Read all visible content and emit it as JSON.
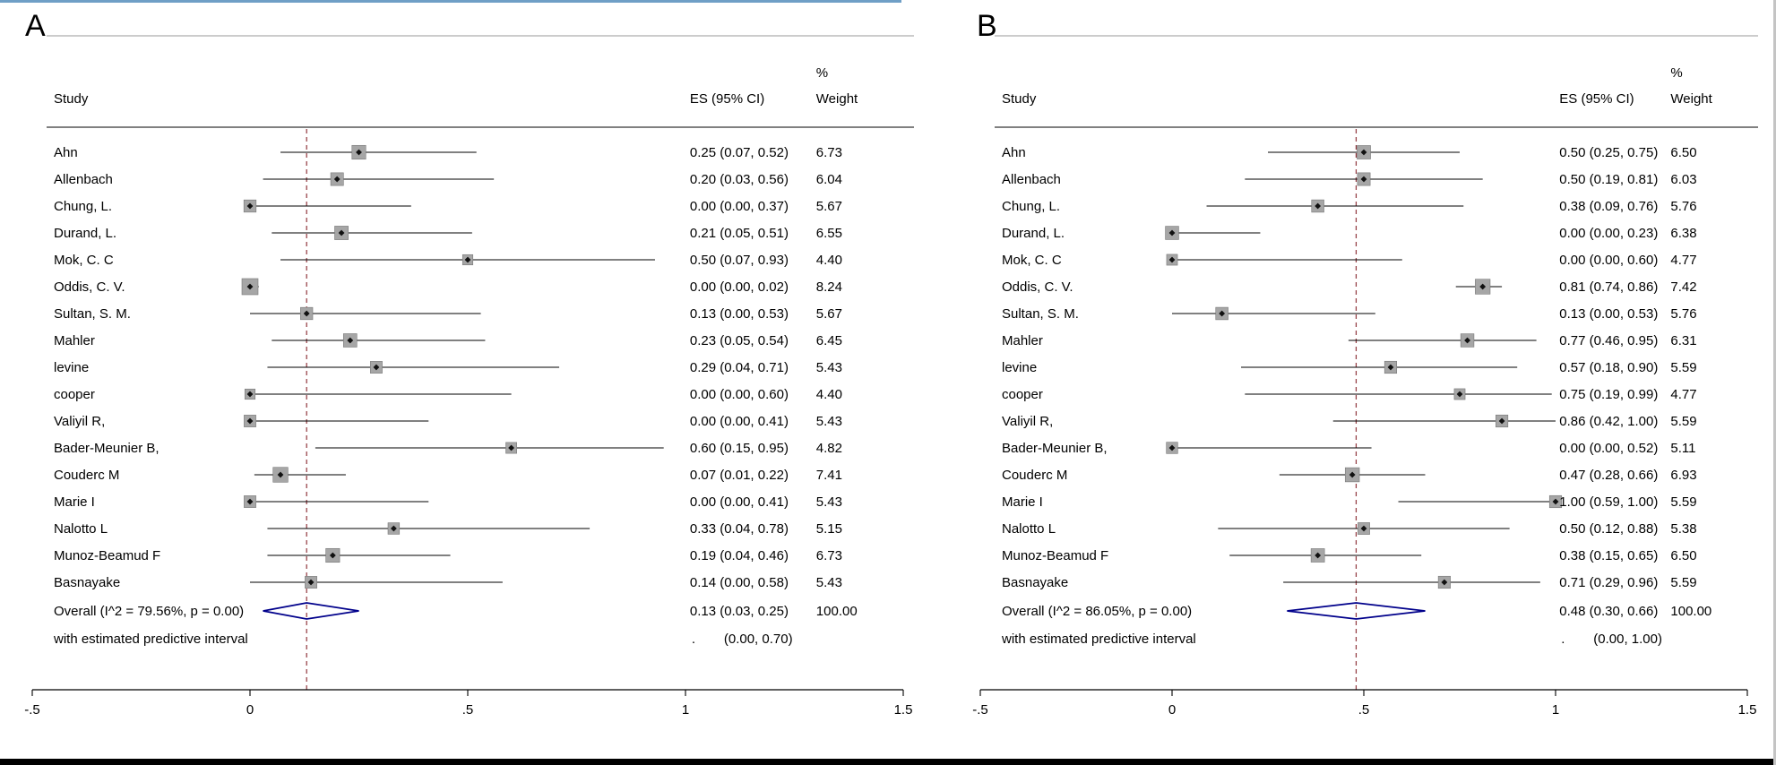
{
  "window": {
    "top_border_color": "#6f9fc6",
    "bottom_bar_color": "#000000",
    "background": "#ffffff"
  },
  "chart_data": [
    {
      "type": "forest",
      "panel_label": "A",
      "columns": {
        "study": "Study",
        "es": "ES (95% CI)",
        "weight_percent": "%",
        "weight": "Weight"
      },
      "xlim": [
        -0.5,
        1.5
      ],
      "x_ticks": [
        {
          "v": -0.5,
          "label": "-.5"
        },
        {
          "v": 0,
          "label": "0"
        },
        {
          "v": 0.5,
          "label": ".5"
        },
        {
          "v": 1,
          "label": "1"
        },
        {
          "v": 1.5,
          "label": "1.5"
        }
      ],
      "ref_line": 0.13,
      "ref_line_color": "#90353b",
      "diamond_color": "#00008b",
      "marker_fill": "#a6a6a6",
      "marker_stroke": "#787878",
      "studies": [
        {
          "name": "Ahn",
          "es": 0.25,
          "lo": 0.07,
          "hi": 0.52,
          "es_label": "0.25 (0.07, 0.52)",
          "weight": "6.73"
        },
        {
          "name": "Allenbach",
          "es": 0.2,
          "lo": 0.03,
          "hi": 0.56,
          "es_label": "0.20 (0.03, 0.56)",
          "weight": "6.04"
        },
        {
          "name": "Chung, L.",
          "es": 0.0,
          "lo": 0.0,
          "hi": 0.37,
          "es_label": "0.00 (0.00, 0.37)",
          "weight": "5.67"
        },
        {
          "name": "Durand, L.",
          "es": 0.21,
          "lo": 0.05,
          "hi": 0.51,
          "es_label": "0.21 (0.05, 0.51)",
          "weight": "6.55"
        },
        {
          "name": "Mok, C. C",
          "es": 0.5,
          "lo": 0.07,
          "hi": 0.93,
          "es_label": "0.50 (0.07, 0.93)",
          "weight": "4.40"
        },
        {
          "name": "Oddis, C. V.",
          "es": 0.0,
          "lo": 0.0,
          "hi": 0.02,
          "es_label": "0.00 (0.00, 0.02)",
          "weight": "8.24"
        },
        {
          "name": "Sultan, S. M.",
          "es": 0.13,
          "lo": 0.0,
          "hi": 0.53,
          "es_label": "0.13 (0.00, 0.53)",
          "weight": "5.67"
        },
        {
          "name": "Mahler",
          "es": 0.23,
          "lo": 0.05,
          "hi": 0.54,
          "es_label": "0.23 (0.05, 0.54)",
          "weight": "6.45"
        },
        {
          "name": "levine",
          "es": 0.29,
          "lo": 0.04,
          "hi": 0.71,
          "es_label": "0.29 (0.04, 0.71)",
          "weight": "5.43"
        },
        {
          "name": "cooper",
          "es": 0.0,
          "lo": 0.0,
          "hi": 0.6,
          "es_label": "0.00 (0.00, 0.60)",
          "weight": "4.40"
        },
        {
          "name": "Valiyil R,",
          "es": 0.0,
          "lo": 0.0,
          "hi": 0.41,
          "es_label": "0.00 (0.00, 0.41)",
          "weight": "5.43"
        },
        {
          "name": "Bader-Meunier B,",
          "es": 0.6,
          "lo": 0.15,
          "hi": 0.95,
          "es_label": "0.60 (0.15, 0.95)",
          "weight": "4.82"
        },
        {
          "name": "Couderc M",
          "es": 0.07,
          "lo": 0.01,
          "hi": 0.22,
          "es_label": "0.07 (0.01, 0.22)",
          "weight": "7.41"
        },
        {
          "name": "Marie I",
          "es": 0.0,
          "lo": 0.0,
          "hi": 0.41,
          "es_label": "0.00 (0.00, 0.41)",
          "weight": "5.43"
        },
        {
          "name": "Nalotto L",
          "es": 0.33,
          "lo": 0.04,
          "hi": 0.78,
          "es_label": "0.33 (0.04, 0.78)",
          "weight": "5.15"
        },
        {
          "name": "Munoz-Beamud F",
          "es": 0.19,
          "lo": 0.04,
          "hi": 0.46,
          "es_label": "0.19 (0.04, 0.46)",
          "weight": "6.73"
        },
        {
          "name": "Basnayake",
          "es": 0.14,
          "lo": 0.0,
          "hi": 0.58,
          "es_label": "0.14 (0.00, 0.58)",
          "weight": "5.43"
        }
      ],
      "overall": {
        "label": "Overall  (I^2 = 79.56%, p = 0.00)",
        "es": 0.13,
        "lo": 0.03,
        "hi": 0.25,
        "es_label": "0.13 (0.03, 0.25)",
        "weight": "100.00"
      },
      "predictive": {
        "label": "with estimated predictive interval",
        "dot": ".",
        "ci_label": "(0.00, 0.70)"
      }
    },
    {
      "type": "forest",
      "panel_label": "B",
      "columns": {
        "study": "Study",
        "es": "ES (95% CI)",
        "weight_percent": "%",
        "weight": "Weight"
      },
      "xlim": [
        -0.5,
        1.5
      ],
      "x_ticks": [
        {
          "v": -0.5,
          "label": "-.5"
        },
        {
          "v": 0,
          "label": "0"
        },
        {
          "v": 0.5,
          "label": ".5"
        },
        {
          "v": 1,
          "label": "1"
        },
        {
          "v": 1.5,
          "label": "1.5"
        }
      ],
      "ref_line": 0.48,
      "ref_line_color": "#90353b",
      "diamond_color": "#00008b",
      "marker_fill": "#a6a6a6",
      "marker_stroke": "#787878",
      "studies": [
        {
          "name": "Ahn",
          "es": 0.5,
          "lo": 0.25,
          "hi": 0.75,
          "es_label": "0.50 (0.25, 0.75)",
          "weight": "6.50"
        },
        {
          "name": "Allenbach",
          "es": 0.5,
          "lo": 0.19,
          "hi": 0.81,
          "es_label": "0.50 (0.19, 0.81)",
          "weight": "6.03"
        },
        {
          "name": "Chung, L.",
          "es": 0.38,
          "lo": 0.09,
          "hi": 0.76,
          "es_label": "0.38 (0.09, 0.76)",
          "weight": "5.76"
        },
        {
          "name": "Durand, L.",
          "es": 0.0,
          "lo": 0.0,
          "hi": 0.23,
          "es_label": "0.00 (0.00, 0.23)",
          "weight": "6.38"
        },
        {
          "name": "Mok, C. C",
          "es": 0.0,
          "lo": 0.0,
          "hi": 0.6,
          "es_label": "0.00 (0.00, 0.60)",
          "weight": "4.77"
        },
        {
          "name": "Oddis, C. V.",
          "es": 0.81,
          "lo": 0.74,
          "hi": 0.86,
          "es_label": "0.81 (0.74, 0.86)",
          "weight": "7.42"
        },
        {
          "name": "Sultan, S. M.",
          "es": 0.13,
          "lo": 0.0,
          "hi": 0.53,
          "es_label": "0.13 (0.00, 0.53)",
          "weight": "5.76"
        },
        {
          "name": "Mahler",
          "es": 0.77,
          "lo": 0.46,
          "hi": 0.95,
          "es_label": "0.77 (0.46, 0.95)",
          "weight": "6.31"
        },
        {
          "name": "levine",
          "es": 0.57,
          "lo": 0.18,
          "hi": 0.9,
          "es_label": "0.57 (0.18, 0.90)",
          "weight": "5.59"
        },
        {
          "name": "cooper",
          "es": 0.75,
          "lo": 0.19,
          "hi": 0.99,
          "es_label": "0.75 (0.19, 0.99)",
          "weight": "4.77"
        },
        {
          "name": "Valiyil R,",
          "es": 0.86,
          "lo": 0.42,
          "hi": 1.0,
          "es_label": "0.86 (0.42, 1.00)",
          "weight": "5.59"
        },
        {
          "name": "Bader-Meunier B,",
          "es": 0.0,
          "lo": 0.0,
          "hi": 0.52,
          "es_label": "0.00 (0.00, 0.52)",
          "weight": "5.11"
        },
        {
          "name": "Couderc M",
          "es": 0.47,
          "lo": 0.28,
          "hi": 0.66,
          "es_label": "0.47 (0.28, 0.66)",
          "weight": "6.93"
        },
        {
          "name": "Marie I",
          "es": 1.0,
          "lo": 0.59,
          "hi": 1.0,
          "es_label": "1.00 (0.59, 1.00)",
          "weight": "5.59"
        },
        {
          "name": "Nalotto L",
          "es": 0.5,
          "lo": 0.12,
          "hi": 0.88,
          "es_label": "0.50 (0.12, 0.88)",
          "weight": "5.38"
        },
        {
          "name": "Munoz-Beamud F",
          "es": 0.38,
          "lo": 0.15,
          "hi": 0.65,
          "es_label": "0.38 (0.15, 0.65)",
          "weight": "6.50"
        },
        {
          "name": "Basnayake",
          "es": 0.71,
          "lo": 0.29,
          "hi": 0.96,
          "es_label": "0.71 (0.29, 0.96)",
          "weight": "5.59"
        }
      ],
      "overall": {
        "label": "Overall  (I^2 = 86.05%, p = 0.00)",
        "es": 0.48,
        "lo": 0.3,
        "hi": 0.66,
        "es_label": "0.48 (0.30, 0.66)",
        "weight": "100.00"
      },
      "predictive": {
        "label": "with estimated predictive interval",
        "dot": ".",
        "ci_label": "(0.00, 1.00)"
      }
    }
  ]
}
